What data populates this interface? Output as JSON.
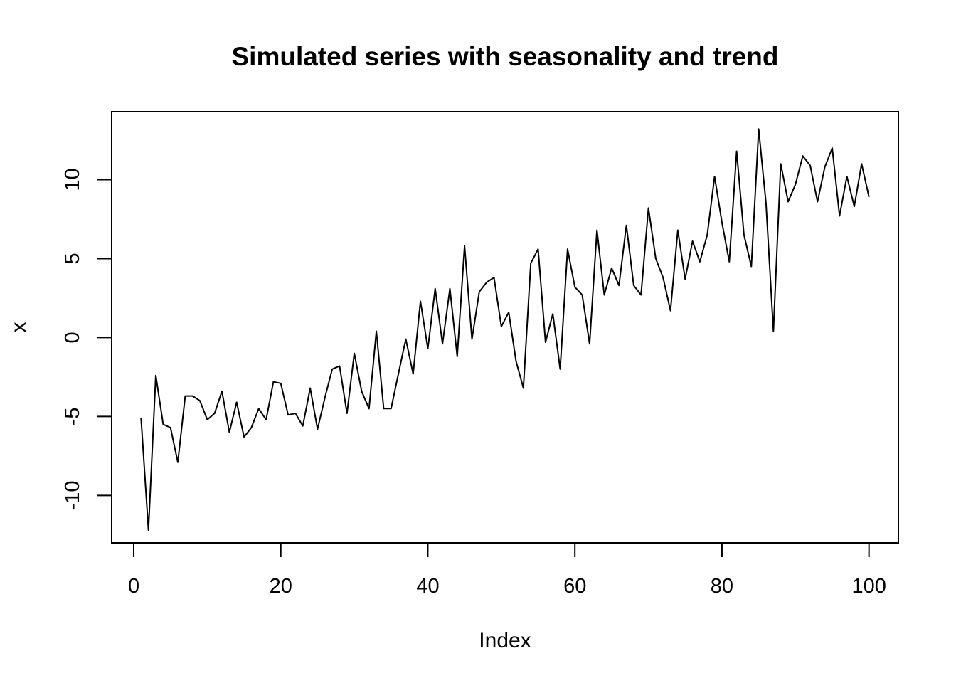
{
  "chart_data": {
    "type": "line",
    "title": "Simulated series with seasonality and trend",
    "xlabel": "Index",
    "ylabel": "x",
    "xlim": [
      -3,
      104
    ],
    "ylim": [
      -13,
      14.3
    ],
    "x_ticks": [
      0,
      20,
      40,
      60,
      80,
      100
    ],
    "y_ticks": [
      -10,
      -5,
      0,
      5,
      10
    ],
    "x_tick_labels": [
      "0",
      "20",
      "40",
      "60",
      "80",
      "100"
    ],
    "y_tick_labels": [
      "-10",
      "-5",
      "0",
      "5",
      "10"
    ],
    "grid": false,
    "legend": "none",
    "series": [
      {
        "color": "#000000",
        "x": [
          1,
          2,
          3,
          4,
          5,
          6,
          7,
          8,
          9,
          10,
          11,
          12,
          13,
          14,
          15,
          16,
          17,
          18,
          19,
          20,
          21,
          22,
          23,
          24,
          25,
          26,
          27,
          28,
          29,
          30,
          31,
          32,
          33,
          34,
          35,
          36,
          37,
          38,
          39,
          40,
          41,
          42,
          43,
          44,
          45,
          46,
          47,
          48,
          49,
          50,
          51,
          52,
          53,
          54,
          55,
          56,
          57,
          58,
          59,
          60,
          61,
          62,
          63,
          64,
          65,
          66,
          67,
          68,
          69,
          70,
          71,
          72,
          73,
          74,
          75,
          76,
          77,
          78,
          79,
          80,
          81,
          82,
          83,
          84,
          85,
          86,
          87,
          88,
          89,
          90,
          91,
          92,
          93,
          94,
          95,
          96,
          97,
          98,
          99,
          100
        ],
        "values": [
          -5.1,
          -12.2,
          -2.4,
          -5.5,
          -5.7,
          -7.9,
          -3.7,
          -3.7,
          -4.0,
          -5.2,
          -4.8,
          -3.4,
          -6.0,
          -4.1,
          -6.3,
          -5.7,
          -4.5,
          -5.2,
          -2.8,
          -2.9,
          -4.9,
          -4.8,
          -5.6,
          -3.2,
          -5.8,
          -3.8,
          -2.0,
          -1.8,
          -4.8,
          -1.0,
          -3.4,
          -4.5,
          0.4,
          -4.5,
          -4.5,
          -2.3,
          -0.1,
          -2.3,
          2.3,
          -0.7,
          3.1,
          -0.4,
          3.1,
          -1.2,
          5.8,
          -0.1,
          2.9,
          3.5,
          3.8,
          0.7,
          1.6,
          -1.5,
          -3.2,
          4.7,
          5.6,
          -0.3,
          1.5,
          -2.0,
          5.6,
          3.2,
          2.7,
          -0.4,
          6.8,
          2.7,
          4.4,
          3.3,
          7.1,
          3.3,
          2.7,
          8.2,
          5.0,
          3.8,
          1.7,
          6.8,
          3.7,
          6.1,
          4.8,
          6.5,
          10.2,
          7.3,
          4.8,
          11.8,
          6.5,
          4.5,
          13.2,
          8.5,
          0.4,
          11.0,
          8.6,
          9.7,
          11.5,
          10.9,
          8.6,
          10.8,
          12.0,
          7.7,
          10.2,
          8.3,
          11.0,
          8.9
        ]
      }
    ]
  }
}
